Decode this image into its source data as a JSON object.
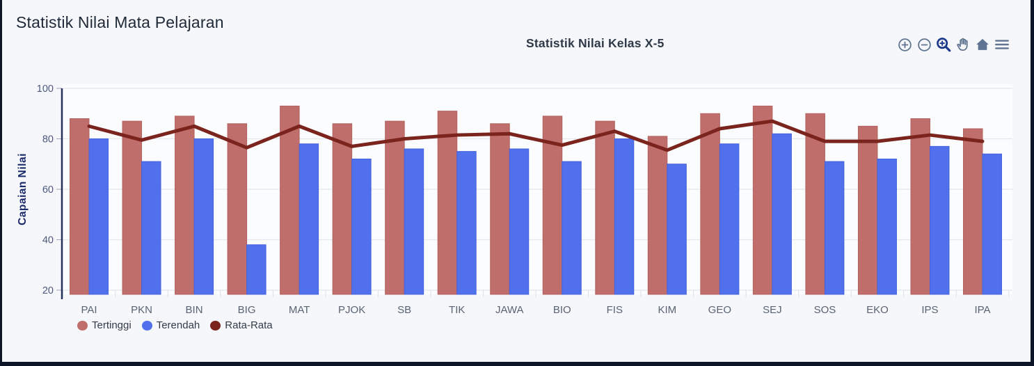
{
  "page": {
    "title": "Statistik Nilai Mata Pelajaran"
  },
  "chart": {
    "title": "Statistik Nilai Kelas X-5",
    "toolbar_icons": [
      "zoom-in-icon",
      "zoom-out-icon",
      "box-zoom-icon",
      "pan-hand-icon",
      "reset-home-icon",
      "menu-icon"
    ],
    "colors": {
      "background": "#f5f7fa",
      "plot_background": "#fbfcfd",
      "gridline": "#e4e7ec",
      "axis_line": "#25335c",
      "axis_title": "#1b2a6b",
      "tick_label": "#4d5a7e",
      "category_label": "#5a6372",
      "frame": "#0d1626"
    }
  },
  "chart_data": {
    "type": "bar",
    "title": "Statistik Nilai Kelas X-5",
    "xlabel": "",
    "ylabel": "Capaian Nilai",
    "ylim": [
      18,
      100
    ],
    "yticks": [
      20,
      40,
      60,
      80,
      100
    ],
    "grid": true,
    "legend_position": "bottom-left",
    "categories": [
      "PAI",
      "PKN",
      "BIN",
      "BIG",
      "MAT",
      "PJOK",
      "SB",
      "TIK",
      "JAWA",
      "BIO",
      "FIS",
      "KIM",
      "GEO",
      "SEJ",
      "SOS",
      "EKO",
      "IPS",
      "IPA"
    ],
    "series": [
      {
        "name": "Tertinggi",
        "type": "bar",
        "color": "#c06e6c",
        "border_color": "#b26260",
        "values": [
          88,
          87,
          89,
          86,
          93,
          86,
          87,
          91,
          86,
          89,
          87,
          81,
          90,
          93,
          90,
          85,
          88,
          84
        ]
      },
      {
        "name": "Terendah",
        "type": "bar",
        "color": "#5070ec",
        "border_color": "#4662dd",
        "values": [
          80,
          71,
          80,
          38,
          78,
          72,
          76,
          75,
          76,
          71,
          80,
          70,
          78,
          82,
          71,
          72,
          77,
          74
        ]
      },
      {
        "name": "Rata-Rata",
        "type": "line",
        "color": "#7a241d",
        "values": [
          85,
          79.5,
          85,
          76.5,
          85,
          77,
          80,
          81.5,
          82,
          77.5,
          83,
          75.5,
          84,
          87,
          79,
          79,
          81.5,
          79
        ]
      }
    ]
  }
}
